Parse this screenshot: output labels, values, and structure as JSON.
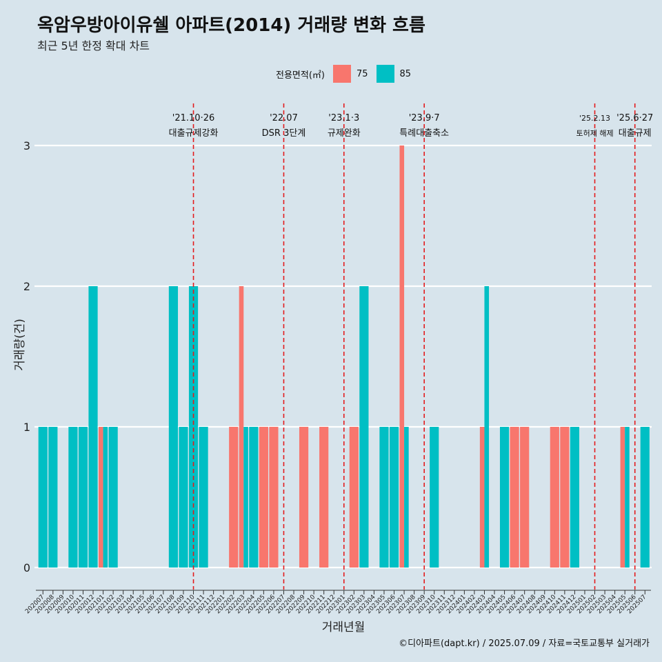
{
  "title": "옥암우방아이유쉘 아파트(2014) 거래량 변화 흐름",
  "subtitle": "최근 5년 한정 확대 차트",
  "legend": {
    "title": "전용면적(㎡)",
    "items": [
      {
        "label": "75",
        "color": "#f8766d"
      },
      {
        "label": "85",
        "color": "#00bfc4"
      }
    ]
  },
  "caption": "©디아파트(dapt.kr) / 2025.07.09 / 자료=국토교통부 실거래가",
  "chart_data": {
    "type": "bar",
    "xlabel": "거래년월",
    "ylabel": "거래량(건)",
    "ylim": [
      0,
      3
    ],
    "yticks": [
      0,
      1,
      2,
      3
    ],
    "categories": [
      "202007",
      "202008",
      "202009",
      "202010",
      "202011",
      "202012",
      "202101",
      "202102",
      "202103",
      "202104",
      "202105",
      "202106",
      "202107",
      "202108",
      "202109",
      "202110",
      "202111",
      "202112",
      "202201",
      "202202",
      "202203",
      "202204",
      "202205",
      "202206",
      "202207",
      "202208",
      "202209",
      "202210",
      "202211",
      "202212",
      "202301",
      "202302",
      "202303",
      "202304",
      "202305",
      "202306",
      "202307",
      "202308",
      "202309",
      "202310",
      "202311",
      "202312",
      "202401",
      "202402",
      "202403",
      "202404",
      "202405",
      "202406",
      "202407",
      "202408",
      "202409",
      "202410",
      "202411",
      "202412",
      "202501",
      "202502",
      "202503",
      "202504",
      "202505",
      "202506",
      "202507"
    ],
    "series": [
      {
        "name": "75",
        "color": "#f8766d",
        "values": [
          0,
          0,
          0,
          0,
          0,
          0,
          1,
          0,
          0,
          0,
          0,
          0,
          0,
          0,
          0,
          0,
          0,
          0,
          0,
          1,
          2,
          0,
          1,
          1,
          0,
          0,
          1,
          0,
          1,
          0,
          0,
          1,
          0,
          0,
          0,
          0,
          3,
          0,
          0,
          0,
          0,
          0,
          0,
          0,
          1,
          0,
          0,
          1,
          1,
          0,
          0,
          1,
          1,
          0,
          0,
          0,
          0,
          0,
          1,
          0,
          0
        ]
      },
      {
        "name": "85",
        "color": "#00bfc4",
        "values": [
          1,
          1,
          0,
          1,
          1,
          2,
          1,
          1,
          0,
          0,
          0,
          0,
          0,
          2,
          1,
          2,
          1,
          0,
          0,
          0,
          1,
          1,
          0,
          0,
          0,
          0,
          0,
          0,
          0,
          0,
          0,
          0,
          2,
          0,
          1,
          1,
          1,
          0,
          0,
          1,
          0,
          0,
          0,
          0,
          2,
          0,
          1,
          0,
          0,
          0,
          0,
          0,
          0,
          1,
          0,
          0,
          0,
          0,
          1,
          0,
          1
        ]
      }
    ],
    "annotations": [
      {
        "x": "202110",
        "date": "'21.10·26",
        "label": "대출규제강화"
      },
      {
        "x": "202207",
        "date": "'22.07",
        "label": "DSR 3단계"
      },
      {
        "x": "202301",
        "date": "'23.1·3",
        "label": "규제완화"
      },
      {
        "x": "202309",
        "date": "'23.9·7",
        "label": "특례대출축소"
      },
      {
        "x": "202502",
        "date": "'25.2.13",
        "label": "토허제 해제"
      },
      {
        "x": "202506",
        "date": "'25.6·27",
        "label": "대출규제"
      }
    ],
    "grid": true,
    "legend_position": "top"
  }
}
